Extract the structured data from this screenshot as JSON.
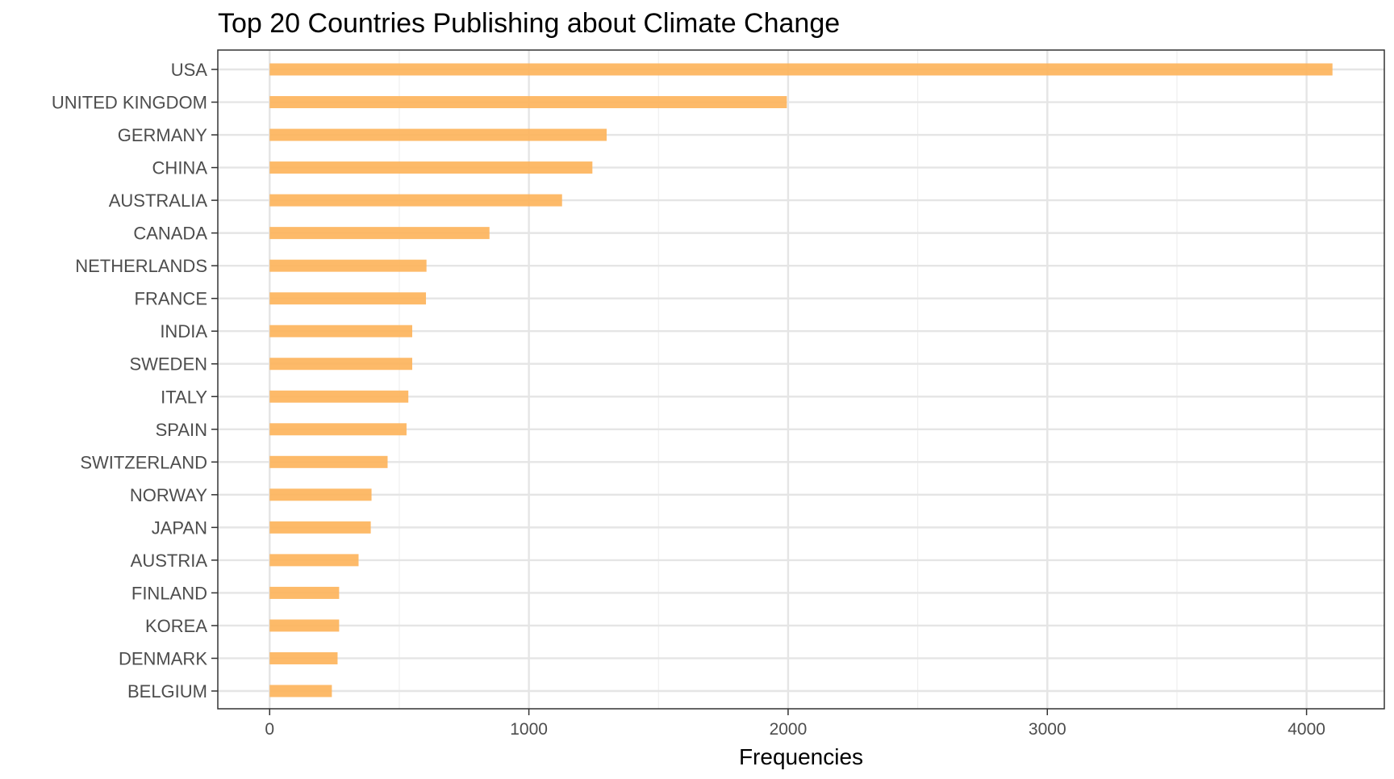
{
  "chart_data": {
    "type": "bar",
    "orientation": "horizontal",
    "title": "Top 20 Countries Publishing about Climate Change",
    "xlabel": "Frequencies",
    "ylabel": "",
    "categories": [
      "USA",
      "UNITED KINGDOM",
      "GERMANY",
      "CHINA",
      "AUSTRALIA",
      "CANADA",
      "NETHERLANDS",
      "FRANCE",
      "INDIA",
      "SWEDEN",
      "ITALY",
      "SPAIN",
      "SWITZERLAND",
      "NORWAY",
      "JAPAN",
      "AUSTRIA",
      "FINLAND",
      "KOREA",
      "DENMARK",
      "BELGIUM"
    ],
    "values": [
      4100,
      1995,
      1300,
      1245,
      1128,
      848,
      605,
      603,
      550,
      550,
      535,
      528,
      455,
      393,
      390,
      343,
      268,
      268,
      262,
      240
    ],
    "xlim": [
      -200,
      4300
    ],
    "xticks": [
      0,
      1000,
      2000,
      3000,
      4000
    ],
    "xtick_labels": [
      "0",
      "1000",
      "2000",
      "3000",
      "4000"
    ],
    "grid": true,
    "bar_color": "#FDB45C",
    "panel_border_color": "#333333",
    "grid_color": "#E5E5E5"
  }
}
